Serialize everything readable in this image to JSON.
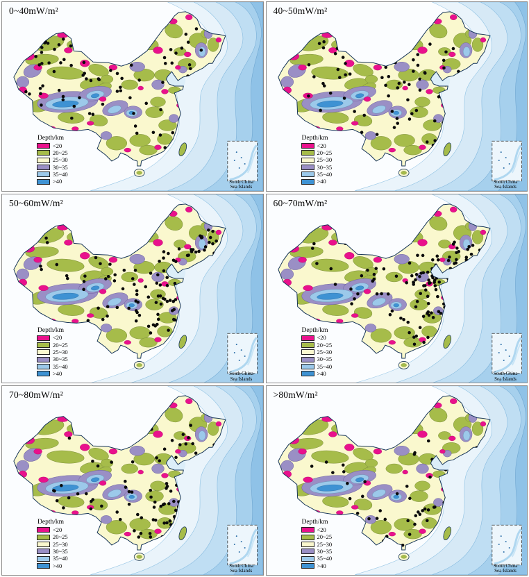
{
  "figure": {
    "rows": 3,
    "cols": 2,
    "description_note": ""
  },
  "panels": [
    {
      "title": "0~40mW/m²",
      "dots": {
        "seed": 11,
        "clusters": [
          [
            90,
            75,
            45,
            22
          ],
          [
            60,
            130,
            35,
            10
          ],
          [
            150,
            90,
            40,
            12
          ],
          [
            200,
            140,
            45,
            10
          ],
          [
            250,
            100,
            40,
            8
          ],
          [
            270,
            60,
            30,
            6
          ],
          [
            220,
            190,
            35,
            6
          ],
          [
            120,
            160,
            30,
            6
          ]
        ]
      }
    },
    {
      "title": "40~50mW/m²",
      "dots": {
        "seed": 22,
        "clusters": [
          [
            100,
            80,
            50,
            14
          ],
          [
            180,
            100,
            50,
            12
          ],
          [
            250,
            80,
            40,
            10
          ],
          [
            230,
            150,
            45,
            10
          ],
          [
            160,
            170,
            40,
            8
          ],
          [
            280,
            120,
            30,
            6
          ],
          [
            90,
            140,
            35,
            6
          ],
          [
            260,
            200,
            30,
            5
          ]
        ]
      }
    },
    {
      "title": "50~60mW/m²",
      "dots": {
        "seed": 33,
        "clusters": [
          [
            230,
            120,
            45,
            10
          ],
          [
            260,
            100,
            35,
            16
          ],
          [
            290,
            80,
            25,
            10
          ],
          [
            220,
            160,
            40,
            16
          ],
          [
            180,
            140,
            40,
            12
          ],
          [
            120,
            110,
            45,
            10
          ],
          [
            260,
            160,
            30,
            10
          ],
          [
            240,
            200,
            35,
            12
          ],
          [
            150,
            190,
            35,
            8
          ],
          [
            70,
            90,
            35,
            6
          ],
          [
            300,
            60,
            20,
            6
          ]
        ]
      }
    },
    {
      "title": "60~70mW/m²",
      "dots": {
        "seed": 44,
        "clusters": [
          [
            265,
            110,
            35,
            30
          ],
          [
            285,
            85,
            25,
            14
          ],
          [
            240,
            140,
            35,
            20
          ],
          [
            260,
            170,
            30,
            16
          ],
          [
            220,
            110,
            30,
            12
          ],
          [
            180,
            130,
            40,
            10
          ],
          [
            240,
            210,
            30,
            10
          ],
          [
            280,
            200,
            25,
            8
          ],
          [
            120,
            130,
            40,
            8
          ],
          [
            90,
            80,
            35,
            6
          ],
          [
            300,
            150,
            15,
            6
          ],
          [
            200,
            180,
            30,
            8
          ]
        ]
      }
    },
    {
      "title": "70~80mW/m²",
      "dots": {
        "seed": 55,
        "clusters": [
          [
            270,
            190,
            35,
            26
          ],
          [
            250,
            215,
            30,
            16
          ],
          [
            290,
            160,
            25,
            10
          ],
          [
            230,
            170,
            30,
            12
          ],
          [
            200,
            200,
            30,
            10
          ],
          [
            260,
            130,
            30,
            10
          ],
          [
            160,
            160,
            40,
            8
          ],
          [
            100,
            150,
            40,
            10
          ],
          [
            220,
            90,
            40,
            8
          ],
          [
            280,
            80,
            30,
            8
          ],
          [
            130,
            90,
            40,
            6
          ]
        ]
      }
    },
    {
      "title": ">80mW/m²",
      "dots": {
        "seed": 66,
        "clusters": [
          [
            250,
            200,
            35,
            12
          ],
          [
            220,
            170,
            35,
            8
          ],
          [
            280,
            170,
            25,
            6
          ],
          [
            190,
            210,
            30,
            6
          ],
          [
            160,
            180,
            30,
            5
          ],
          [
            120,
            150,
            35,
            5
          ],
          [
            260,
            120,
            30,
            5
          ],
          [
            90,
            110,
            35,
            4
          ],
          [
            300,
            90,
            20,
            3
          ],
          [
            230,
            90,
            30,
            4
          ]
        ]
      }
    }
  ],
  "legend": {
    "title": "Depth/km",
    "items": [
      {
        "label": "<20",
        "color": "#E9118C"
      },
      {
        "label": "20~25",
        "color": "#A6BC4A"
      },
      {
        "label": "25~30",
        "color": "#FAF8CE"
      },
      {
        "label": "30~35",
        "color": "#9A8FC5"
      },
      {
        "label": "35~40",
        "color": "#9CC9EA"
      },
      {
        "label": ">40",
        "color": "#3E92D3"
      }
    ]
  },
  "inset": {
    "caption": "South China\nSea Islands"
  },
  "map_colors": {
    "land_base": "#FAF8CE",
    "outline": "#16355a",
    "ocean_bands": [
      "#EAF4FB",
      "#D6E9F6",
      "#BFDEF3",
      "#A6D0ED",
      "#8FC2E7"
    ],
    "dot": "#0a0a0a"
  },
  "dot_style": {
    "radius": 2.3
  }
}
